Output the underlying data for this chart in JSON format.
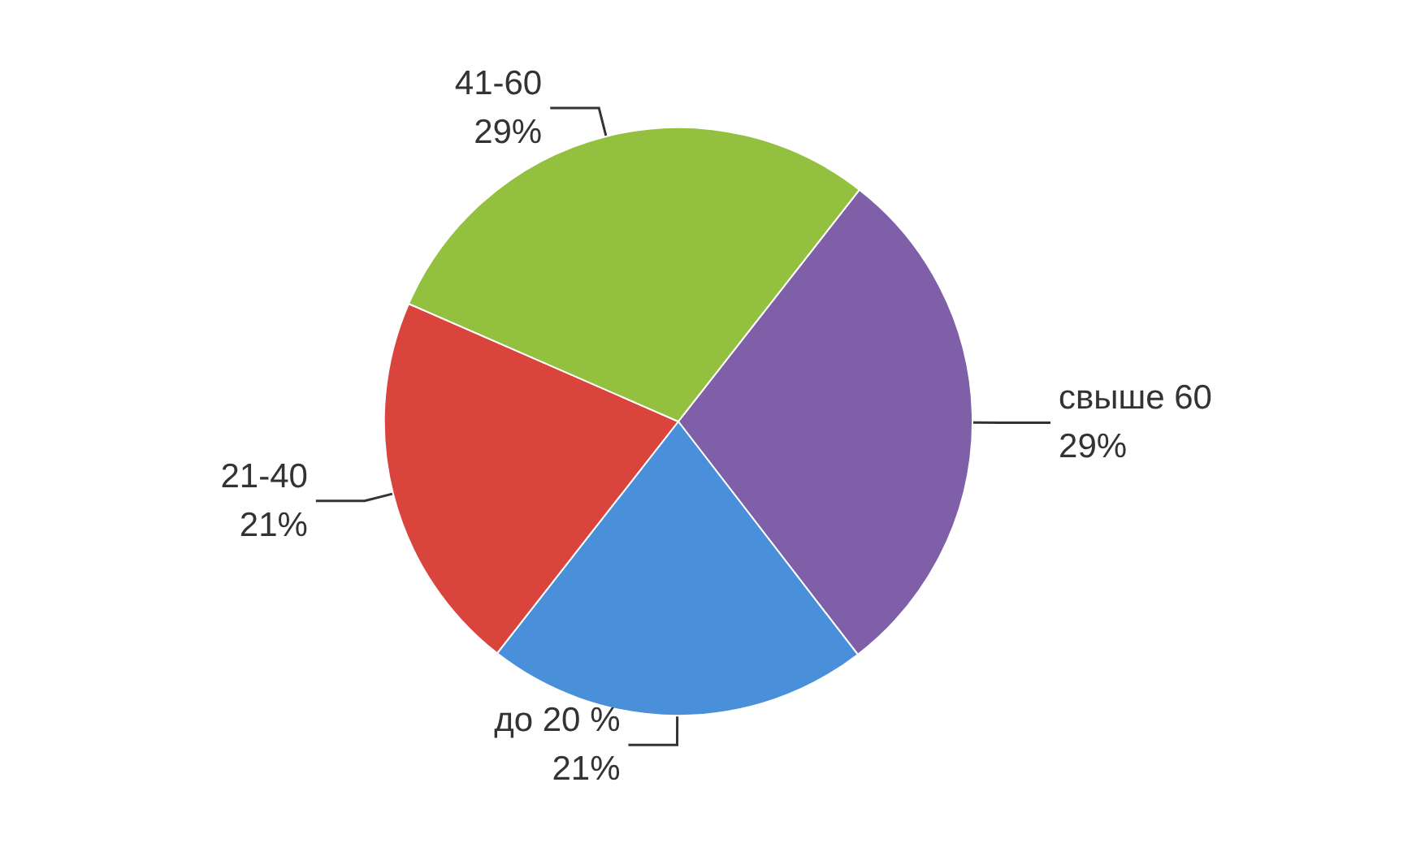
{
  "chart_data": {
    "type": "pie",
    "categories": [
      "свыше 60",
      "до 20 %",
      "21-40",
      "41-60"
    ],
    "values": [
      29,
      21,
      21,
      29
    ],
    "colors": [
      "#7f5fa8",
      "#4a8fd9",
      "#d9443c",
      "#94c040"
    ],
    "value_labels": [
      "29%",
      "21%",
      "21%",
      "29%"
    ],
    "legend": false
  }
}
